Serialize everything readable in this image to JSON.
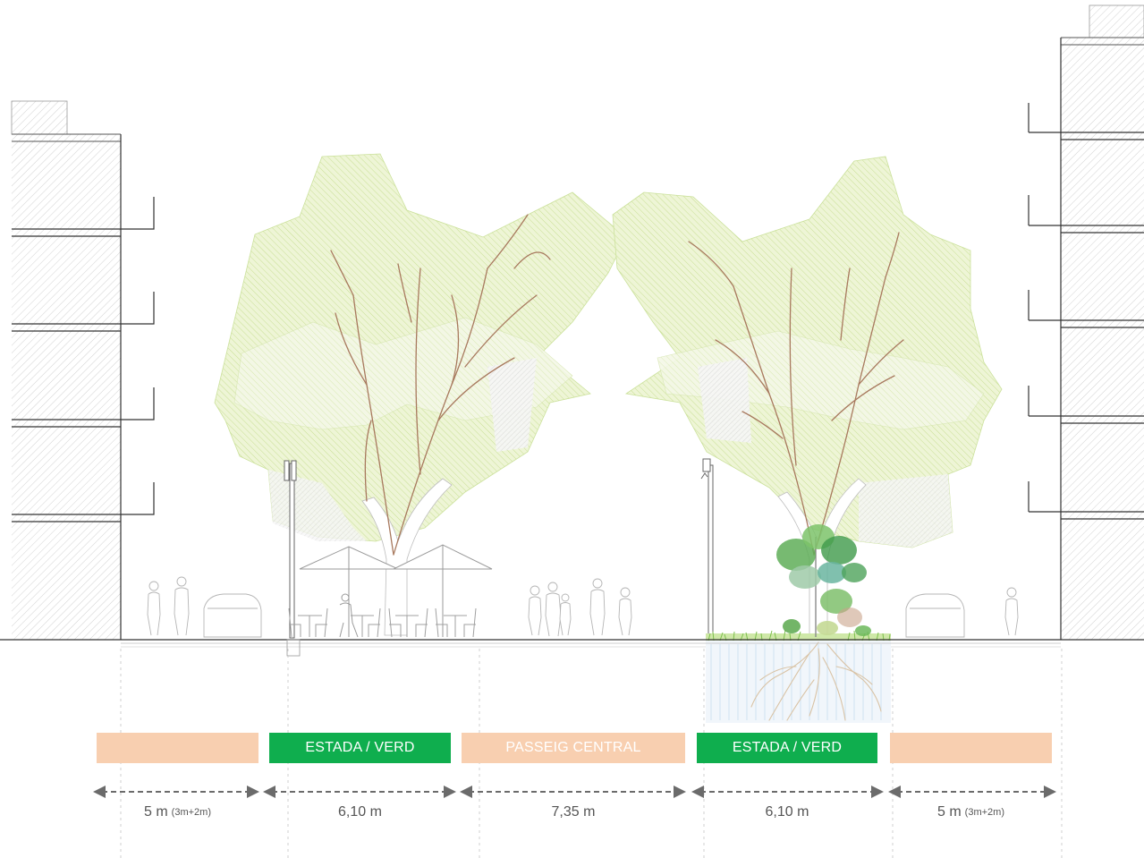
{
  "colors": {
    "band_peach": "#f8cfb0",
    "band_green": "#0fae4e",
    "canopy": "#d6e8a6",
    "ground": "#333333",
    "hatch": "#c9c9c9",
    "arrow": "#6b6b6b"
  },
  "bands": [
    {
      "label": "",
      "color": "#f8cfb0"
    },
    {
      "label": "ESTADA / VERD",
      "color": "#0fae4e"
    },
    {
      "label": "PASSEIG CENTRAL",
      "color": "#f8cfb0"
    },
    {
      "label": "ESTADA / VERD",
      "color": "#0fae4e"
    },
    {
      "label": "",
      "color": "#f8cfb0"
    }
  ],
  "dimensions": [
    {
      "value": "5 m",
      "note": "(3m+2m)"
    },
    {
      "value": "6,10 m",
      "note": ""
    },
    {
      "value": "7,35 m",
      "note": ""
    },
    {
      "value": "6,10 m",
      "note": ""
    },
    {
      "value": "5 m",
      "note": "(3m+2m)"
    }
  ],
  "icons": {
    "people": "person-silhouette-icon",
    "cars": "car-silhouette-icon",
    "umbrellas": "parasol-icon",
    "street_lights": "street-lamp-icon",
    "trees": "tree-icon",
    "planting": "shrub-icon"
  }
}
